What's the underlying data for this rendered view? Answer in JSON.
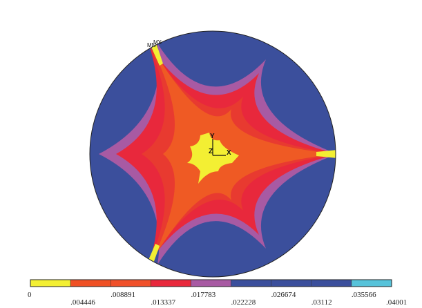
{
  "contour_plot": {
    "bands": [
      {
        "color": "#f3ef33",
        "name": "band-1"
      },
      {
        "color": "#ef5024",
        "name": "band-2"
      },
      {
        "color": "#f0502a",
        "name": "band-3"
      },
      {
        "color": "#e8283c",
        "name": "band-4"
      },
      {
        "color": "#a85aa3",
        "name": "band-5"
      },
      {
        "color": "#3b4f9c",
        "name": "band-6"
      },
      {
        "color": "#3b4f9c",
        "name": "band-7"
      },
      {
        "color": "#3b4f9c",
        "name": "band-8"
      },
      {
        "color": "#57c3da",
        "name": "band-9"
      }
    ],
    "legend_values": [
      "0",
      ".004446",
      ".008891",
      ".013337",
      ".017783",
      ".022228",
      ".026674",
      ".03112",
      ".035566",
      ".04001"
    ],
    "axis_labels": {
      "x": "X",
      "y": "Y",
      "z": "Z"
    },
    "marker_labels": {
      "max": "MX",
      "min": "MN"
    },
    "colors": {
      "background": "#ffffff",
      "outline": "#222222",
      "outer": "#3b4f9c",
      "purple": "#a85aa3",
      "red": "#e8283c",
      "orange": "#ef5a24",
      "yellow": "#f3ef33",
      "cyan": "#57c3da"
    }
  }
}
